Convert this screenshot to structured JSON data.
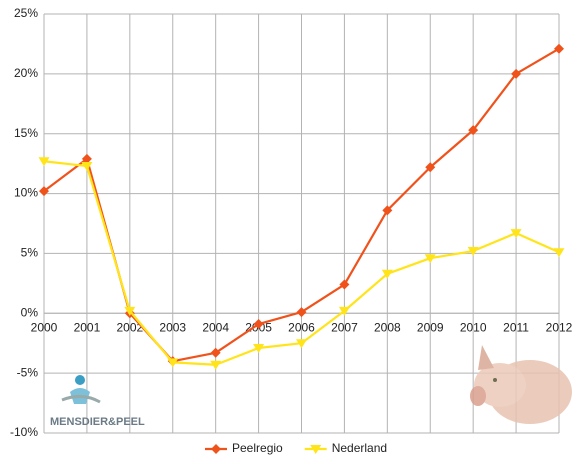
{
  "chart_data": {
    "type": "line",
    "categories": [
      "2000",
      "2001",
      "2002",
      "2003",
      "2004",
      "2005",
      "2006",
      "2007",
      "2008",
      "2009",
      "2010",
      "2011",
      "2012"
    ],
    "series": [
      {
        "name": "Peelregio",
        "color": "#f0521c",
        "marker": "diamond",
        "values": [
          10.2,
          12.9,
          0.0,
          -4.0,
          -3.3,
          -0.9,
          0.1,
          2.4,
          8.6,
          12.2,
          15.3,
          20.0,
          22.1
        ]
      },
      {
        "name": "Nederland",
        "color": "#ffe41a",
        "marker": "triangle-down",
        "values": [
          12.7,
          12.3,
          0.2,
          -4.1,
          -4.3,
          -2.9,
          -2.5,
          0.2,
          3.3,
          4.6,
          5.2,
          6.7,
          5.1
        ]
      }
    ],
    "ylim": [
      -10,
      25
    ],
    "yticks": [
      {
        "value": -10,
        "label": "-10%"
      },
      {
        "value": -5,
        "label": "-5%"
      },
      {
        "value": 0,
        "label": "0%"
      },
      {
        "value": 5,
        "label": "5%"
      },
      {
        "value": 10,
        "label": "10%"
      },
      {
        "value": 15,
        "label": "15%"
      },
      {
        "value": 20,
        "label": "20%"
      },
      {
        "value": 25,
        "label": "25%"
      }
    ],
    "grid": true,
    "legend": "bottom",
    "logo_text": "MENSDIER&PEEL"
  }
}
